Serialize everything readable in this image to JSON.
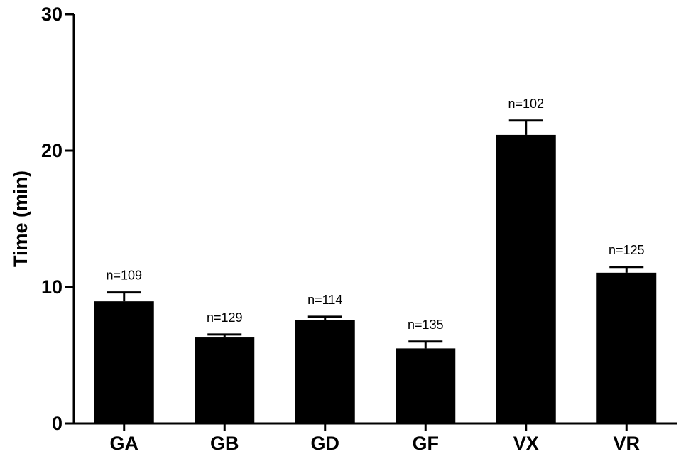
{
  "chart_data": {
    "type": "bar",
    "title": "",
    "xlabel": "",
    "ylabel": "Time (min)",
    "ylim": [
      0,
      30
    ],
    "yticks": [
      "0",
      "10",
      "20",
      "30"
    ],
    "categories": [
      "GA",
      "GB",
      "GD",
      "GF",
      "VX",
      "VR"
    ],
    "values": [
      8.95,
      6.3,
      7.6,
      5.5,
      21.15,
      11.05
    ],
    "errors": [
      0.65,
      0.22,
      0.22,
      0.5,
      1.05,
      0.42
    ],
    "annotations": [
      "n=109",
      "n=129",
      "n=114",
      "n=135",
      "n=102",
      "n=125"
    ],
    "bar_color": "#000000",
    "grid": false,
    "legend": "none"
  }
}
